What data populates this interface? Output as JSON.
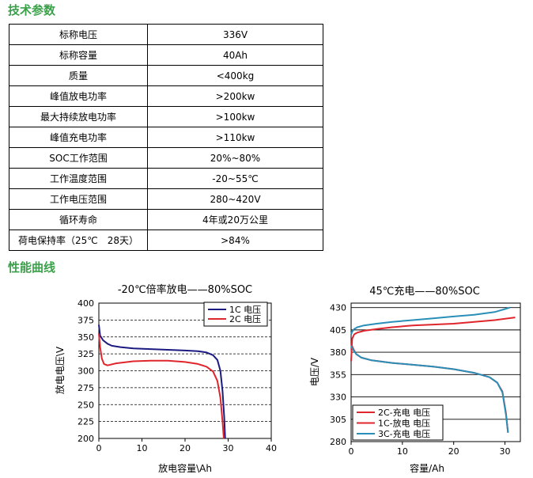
{
  "sections": {
    "spec_title": "技术参数",
    "curve_title": "性能曲线"
  },
  "spec_rows": [
    {
      "label": "标称电压",
      "value": "336V"
    },
    {
      "label": "标称容量",
      "value": "40Ah"
    },
    {
      "label": "质量",
      "value": "<400kg"
    },
    {
      "label": "峰值放电功率",
      "value": ">200kw"
    },
    {
      "label": "最大持续放电功率",
      "value": ">100kw"
    },
    {
      "label": "峰值充电功率",
      "value": ">110kw"
    },
    {
      "label": "SOC工作范围",
      "value": "20%~80%"
    },
    {
      "label": "工作温度范围",
      "value": "-20~55℃"
    },
    {
      "label": "工作电压范围",
      "value": "280~420V"
    },
    {
      "label": "循环寿命",
      "value": "4年或20万公里"
    },
    {
      "label": "荷电保持率（25℃　28天）",
      "value": ">84%"
    }
  ],
  "chart_data": [
    {
      "type": "line",
      "title": "-20℃倍率放电——80%SOC",
      "xlabel": "放电容量\\Ah",
      "ylabel": "放电电压\\V",
      "xlim": [
        0,
        40
      ],
      "ylim": [
        200,
        400
      ],
      "xticks": [
        0,
        10,
        20,
        30,
        40
      ],
      "yticks": [
        200,
        225,
        250,
        275,
        300,
        325,
        350,
        375,
        400
      ],
      "grid": "horizontal dashed",
      "legend": "top-right",
      "series": [
        {
          "name": "1C 电压",
          "color": "#1a1a80",
          "x": [
            0,
            0.3,
            1,
            2,
            3,
            5,
            8,
            12,
            16,
            20,
            23,
            25,
            26.5,
            27.5,
            28.2,
            28.7,
            29.1,
            29.3
          ],
          "y": [
            368,
            352,
            345,
            340,
            337,
            335,
            333,
            332,
            331,
            330,
            329,
            327,
            323,
            316,
            300,
            270,
            230,
            200
          ]
        },
        {
          "name": "2C 电压",
          "color": "#e0262d",
          "x": [
            0,
            0.3,
            0.7,
            1.2,
            2,
            4,
            8,
            12,
            16,
            20,
            23,
            25,
            26.5,
            27.5,
            28.2,
            28.7,
            29.0
          ],
          "y": [
            355,
            335,
            318,
            310,
            308,
            311,
            314,
            315,
            315,
            313,
            310,
            306,
            299,
            285,
            260,
            225,
            200
          ]
        }
      ]
    },
    {
      "type": "line",
      "title": "45℃充电——80%SOC",
      "xlabel": "容量/Ah",
      "ylabel": "电压/V",
      "xlim": [
        0,
        33
      ],
      "ylim": [
        280,
        435
      ],
      "xticks": [
        0,
        10,
        20,
        30
      ],
      "yticks": [
        280,
        305,
        330,
        355,
        380,
        405,
        430
      ],
      "grid": "horizontal solid",
      "legend": "bottom-left",
      "series": [
        {
          "name": "2C-充电 电压",
          "color": "#e0262d",
          "x": [
            0,
            0.2,
            0.6,
            1.2,
            2.5,
            5,
            8,
            12,
            16,
            20,
            24,
            28,
            32
          ],
          "y": [
            370,
            395,
            400,
            402,
            404,
            406,
            408,
            410,
            411,
            412,
            414,
            416,
            419
          ]
        },
        {
          "name": "1C-放电 电压",
          "color": "#e0262d",
          "x": [
            0,
            0.5,
            1,
            2,
            4,
            8,
            12,
            16,
            20,
            24,
            27,
            28.5,
            29.5,
            30.2,
            30.6
          ],
          "y": [
            389,
            383,
            378,
            374,
            371,
            368,
            366,
            364,
            361,
            357,
            352,
            346,
            336,
            312,
            290
          ]
        },
        {
          "name": "3C-充电 电压",
          "color": "#2a8fb8",
          "x": [
            0,
            0.2,
            0.6,
            1.2,
            2.5,
            5,
            8,
            12,
            16,
            20,
            24,
            28,
            31
          ],
          "y": [
            400,
            403,
            406,
            408,
            410,
            412,
            414,
            416,
            418,
            420,
            422,
            425,
            430
          ]
        },
        {
          "name": "",
          "color": "#2a8fb8",
          "x": [
            0,
            0.5,
            1,
            2,
            4,
            8,
            12,
            16,
            20,
            24,
            27,
            28.5,
            29.5,
            30.2,
            30.6
          ],
          "y": [
            387,
            382,
            378,
            374,
            371,
            368,
            366,
            364,
            361,
            357,
            352,
            346,
            335,
            310,
            290
          ]
        }
      ]
    }
  ]
}
